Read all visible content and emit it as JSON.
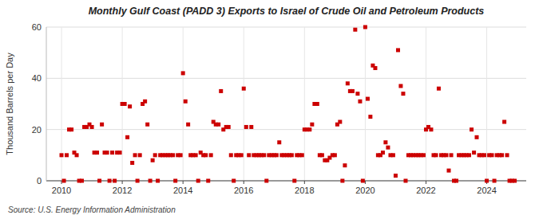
{
  "chart_data": {
    "type": "scatter",
    "title": "Monthly Gulf Coast (PADD 3) Exports to Israel of Crude Oil and Petroleum Products",
    "ylabel": "Thousand Barrels per Day",
    "source": "Source: U.S. Energy Information Administration",
    "color": "#cc0000",
    "marker": "square",
    "grid": true,
    "xlim": [
      2009.5,
      2025.3
    ],
    "ylim": [
      0,
      60
    ],
    "xticks": [
      2010,
      2012,
      2014,
      2016,
      2018,
      2020,
      2022,
      2024
    ],
    "yticks": [
      0,
      20,
      40,
      60
    ],
    "x": [
      2010.0,
      2010.08,
      2010.17,
      2010.25,
      2010.33,
      2010.42,
      2010.5,
      2010.58,
      2010.67,
      2010.75,
      2010.83,
      2010.92,
      2011.0,
      2011.08,
      2011.17,
      2011.25,
      2011.33,
      2011.42,
      2011.5,
      2011.58,
      2011.67,
      2011.75,
      2011.83,
      2011.92,
      2012.0,
      2012.08,
      2012.17,
      2012.25,
      2012.33,
      2012.42,
      2012.5,
      2012.58,
      2012.67,
      2012.75,
      2012.83,
      2012.92,
      2013.0,
      2013.08,
      2013.17,
      2013.25,
      2013.33,
      2013.42,
      2013.5,
      2013.58,
      2013.67,
      2013.75,
      2013.83,
      2013.92,
      2014.0,
      2014.08,
      2014.17,
      2014.25,
      2014.33,
      2014.42,
      2014.5,
      2014.58,
      2014.67,
      2014.75,
      2014.83,
      2014.92,
      2015.0,
      2015.08,
      2015.17,
      2015.25,
      2015.33,
      2015.42,
      2015.5,
      2015.58,
      2015.67,
      2015.75,
      2015.83,
      2015.92,
      2016.0,
      2016.08,
      2016.17,
      2016.25,
      2016.33,
      2016.42,
      2016.5,
      2016.58,
      2016.67,
      2016.75,
      2016.83,
      2016.92,
      2017.0,
      2017.08,
      2017.17,
      2017.25,
      2017.33,
      2017.42,
      2017.5,
      2017.58,
      2017.67,
      2017.75,
      2017.83,
      2017.92,
      2018.0,
      2018.08,
      2018.17,
      2018.25,
      2018.33,
      2018.42,
      2018.5,
      2018.58,
      2018.67,
      2018.75,
      2018.83,
      2018.92,
      2019.0,
      2019.08,
      2019.17,
      2019.25,
      2019.33,
      2019.42,
      2019.5,
      2019.58,
      2019.67,
      2019.75,
      2019.83,
      2019.92,
      2020.0,
      2020.08,
      2020.17,
      2020.25,
      2020.33,
      2020.42,
      2020.5,
      2020.58,
      2020.67,
      2020.75,
      2020.83,
      2020.92,
      2021.0,
      2021.08,
      2021.17,
      2021.25,
      2021.33,
      2021.42,
      2021.5,
      2021.58,
      2021.67,
      2021.75,
      2021.83,
      2021.92,
      2022.0,
      2022.08,
      2022.17,
      2022.25,
      2022.33,
      2022.42,
      2022.5,
      2022.58,
      2022.67,
      2022.75,
      2022.83,
      2022.92,
      2023.0,
      2023.08,
      2023.17,
      2023.25,
      2023.33,
      2023.42,
      2023.5,
      2023.58,
      2023.67,
      2023.75,
      2023.83,
      2023.92,
      2024.0,
      2024.08,
      2024.17,
      2024.25,
      2024.33,
      2024.42,
      2024.5,
      2024.58,
      2024.67,
      2024.75,
      2024.83,
      2024.92
    ],
    "values": [
      10,
      0,
      10,
      20,
      20,
      11,
      10,
      0,
      0,
      21,
      21,
      22,
      21,
      11,
      11,
      0,
      22,
      11,
      11,
      0,
      11,
      0,
      11,
      11,
      30,
      30,
      17,
      29,
      7,
      10,
      0,
      10,
      30,
      31,
      22,
      0,
      8,
      10,
      0,
      10,
      10,
      10,
      10,
      10,
      10,
      0,
      10,
      10,
      42,
      31,
      22,
      10,
      10,
      10,
      0,
      11,
      10,
      10,
      0,
      10,
      23,
      22,
      22,
      35,
      20,
      21,
      21,
      10,
      0,
      10,
      10,
      10,
      36,
      21,
      10,
      21,
      10,
      10,
      10,
      10,
      10,
      0,
      10,
      10,
      10,
      10,
      15,
      10,
      10,
      10,
      10,
      10,
      0,
      10,
      10,
      10,
      20,
      20,
      20,
      22,
      30,
      30,
      10,
      10,
      8,
      8,
      9,
      10,
      10,
      22,
      23,
      0,
      6,
      38,
      35,
      35,
      59,
      34,
      31,
      0,
      60,
      32,
      25,
      45,
      44,
      10,
      10,
      11,
      15,
      13,
      10,
      10,
      2,
      51,
      37,
      34,
      0,
      10,
      10,
      10,
      10,
      10,
      10,
      10,
      20,
      21,
      20,
      10,
      10,
      36,
      10,
      10,
      10,
      4,
      10,
      0,
      0,
      10,
      10,
      10,
      10,
      10,
      20,
      11,
      17,
      10,
      10,
      10,
      0,
      10,
      10,
      0,
      10,
      10,
      10,
      23,
      10,
      0,
      0,
      0
    ]
  }
}
